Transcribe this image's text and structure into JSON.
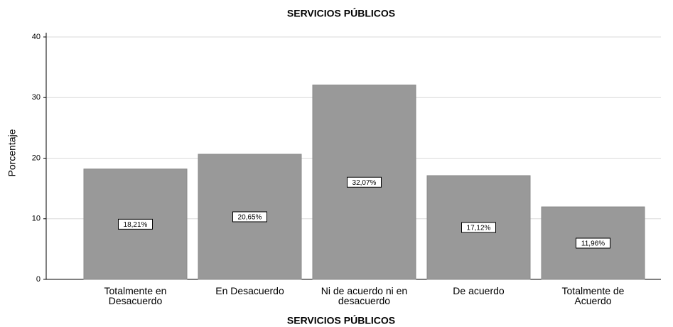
{
  "chart_data": {
    "type": "bar",
    "title": "SERVICIOS PÚBLICOS",
    "x_label": "SERVICIOS PÚBLICOS",
    "y_label": "Porcentaje",
    "categories": [
      "Totalmente en Desacuerdo",
      "En Desacuerdo",
      "Ni de acuerdo ni en desacuerdo",
      "De acuerdo",
      "Totalmente de Acuerdo"
    ],
    "values": [
      18.21,
      20.65,
      32.07,
      17.12,
      11.96
    ],
    "value_labels": [
      "18,21%",
      "20,65%",
      "32,07%",
      "17,12%",
      "11,96%"
    ],
    "color": "#999999",
    "ylim": [
      0,
      40
    ],
    "yticks": [
      0,
      10,
      20,
      30,
      40
    ],
    "grid": true
  }
}
